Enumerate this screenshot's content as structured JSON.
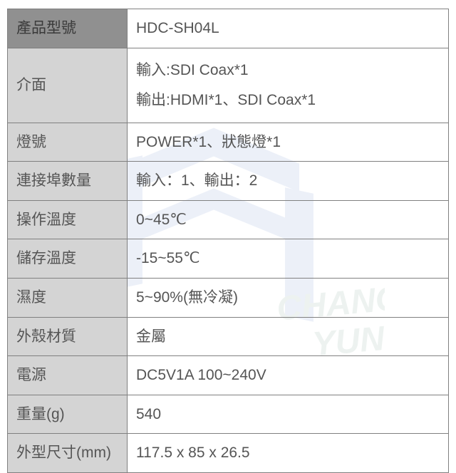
{
  "table": {
    "rows": [
      {
        "label": "產品型號",
        "value": "HDC-SH04L",
        "header": true
      },
      {
        "label": "介面",
        "value": "輸入:SDI Coax*1\n輸出:HDMI*1、SDI Coax*1",
        "multiline": true
      },
      {
        "label": "燈號",
        "value": "POWER*1、狀態燈*1"
      },
      {
        "label": "連接埠數量",
        "value": "輸入：1、輸出：2"
      },
      {
        "label": "操作溫度",
        "value": "0~45℃"
      },
      {
        "label": "儲存溫度",
        "value": "-15~55℃"
      },
      {
        "label": "濕度",
        "value": "5~90%(無冷凝)"
      },
      {
        "label": "外殼材質",
        "value": "金屬"
      },
      {
        "label": "電源",
        "value": "DC5V1A 100~240V"
      },
      {
        "label": "重量(g)",
        "value": "540"
      },
      {
        "label": "外型尺寸(mm)",
        "value": "117.5 x 85 x 26.5"
      }
    ]
  },
  "watermark": {
    "text": "CHANG YUN",
    "logo_color": "#1a4fb5",
    "text_color": "#2a6b4a"
  }
}
